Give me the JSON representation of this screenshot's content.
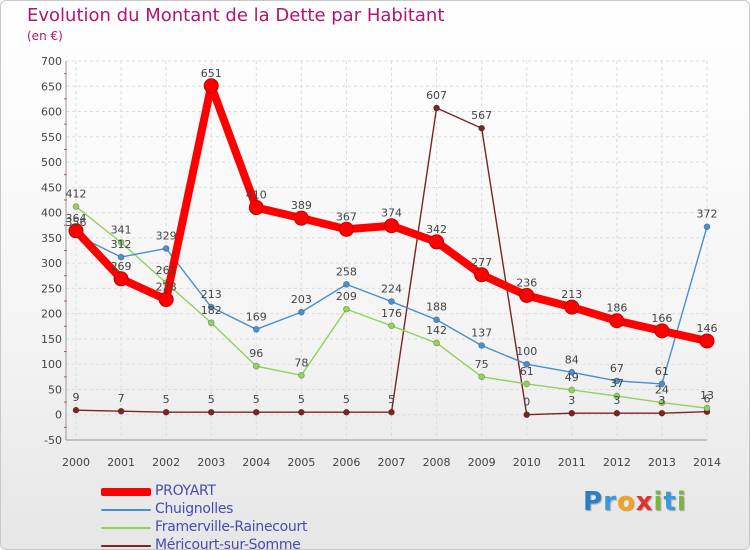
{
  "title": "Evolution du Montant de la Dette par Habitant",
  "subtitle": "(en €)",
  "logo": {
    "text": "Proxiti",
    "letters": [
      {
        "ch": "P",
        "color": "#2a7fc2"
      },
      {
        "ch": "r",
        "color": "#3a9ad9"
      },
      {
        "ch": "o",
        "color": "#f3a21c"
      },
      {
        "ch": "x",
        "color": "#e0342b"
      },
      {
        "ch": "i",
        "color": "#7cb342"
      },
      {
        "ch": "t",
        "color": "#3a9ad9"
      },
      {
        "ch": "i",
        "color": "#7cb342"
      }
    ]
  },
  "chart_data": {
    "type": "line",
    "title": "Evolution du Montant de la Dette par Habitant",
    "ylabel": "(en €)",
    "ylim": [
      -50,
      700
    ],
    "yticks": [
      -50,
      0,
      50,
      100,
      150,
      200,
      250,
      300,
      350,
      400,
      450,
      500,
      550,
      600,
      650,
      700
    ],
    "grid": true,
    "legend_position": "bottom-left",
    "categories": [
      "2000",
      "2001",
      "2002",
      "2003",
      "2004",
      "2005",
      "2006",
      "2007",
      "2008",
      "2009",
      "2010",
      "2011",
      "2012",
      "2013",
      "2014"
    ],
    "series": [
      {
        "name": "PROYART",
        "color": "#ff0000",
        "values": [
          364,
          269,
          228,
          651,
          410,
          389,
          367,
          374,
          342,
          277,
          236,
          213,
          186,
          166,
          146
        ]
      },
      {
        "name": "Chuignolles",
        "color": "#4a8fd0",
        "values": [
          356,
          312,
          329,
          213,
          169,
          203,
          258,
          224,
          188,
          137,
          100,
          84,
          67,
          61,
          372
        ]
      },
      {
        "name": "Framerville-Rainecourt",
        "color": "#8fd35a",
        "values": [
          412,
          341,
          261,
          182,
          96,
          78,
          209,
          176,
          142,
          75,
          61,
          49,
          37,
          24,
          13
        ]
      },
      {
        "name": "Méricourt-sur-Somme",
        "color": "#7b2424",
        "values": [
          9,
          7,
          5,
          5,
          5,
          5,
          5,
          5,
          607,
          567,
          0,
          3,
          3,
          3,
          6
        ]
      }
    ]
  }
}
